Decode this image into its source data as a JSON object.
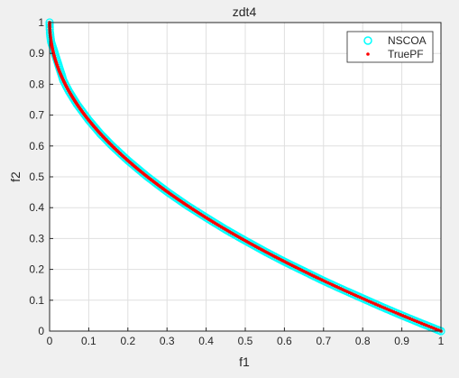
{
  "chart_data": {
    "type": "scatter",
    "title": "zdt4",
    "xlabel": "f1",
    "ylabel": "f2",
    "xlim": [
      0,
      1
    ],
    "ylim": [
      0,
      1
    ],
    "xticks": [
      0,
      0.1,
      0.2,
      0.3,
      0.4,
      0.5,
      0.6,
      0.7,
      0.8,
      0.9,
      1
    ],
    "xtick_labels": [
      "0",
      "0.1",
      "0.2",
      "0.3",
      "0.4",
      "0.5",
      "0.6",
      "0.7",
      "0.8",
      "0.9",
      "1"
    ],
    "yticks": [
      0,
      0.1,
      0.2,
      0.3,
      0.4,
      0.5,
      0.6,
      0.7,
      0.8,
      0.9,
      1
    ],
    "ytick_labels": [
      "0",
      "0.1",
      "0.2",
      "0.3",
      "0.4",
      "0.5",
      "0.6",
      "0.7",
      "0.8",
      "0.9",
      "1"
    ],
    "grid": true,
    "legend_position": "top-right",
    "series": [
      {
        "name": "NSCOA",
        "marker": "circle-open",
        "color": "#00ffff",
        "x": [
          0.0,
          0.0005,
          0.001,
          0.002,
          0.004,
          0.035,
          0.04,
          0.05,
          0.07,
          0.1,
          0.13,
          0.16,
          0.2,
          0.25,
          0.3,
          0.35,
          0.4,
          0.45,
          0.5,
          0.55,
          0.6,
          0.65,
          0.7,
          0.75,
          0.8,
          0.85,
          0.9,
          0.95,
          1.0
        ],
        "y": [
          1.0,
          0.978,
          0.968,
          0.955,
          0.937,
          0.813,
          0.8,
          0.776,
          0.735,
          0.684,
          0.639,
          0.6,
          0.553,
          0.5,
          0.452,
          0.408,
          0.368,
          0.329,
          0.293,
          0.258,
          0.225,
          0.194,
          0.163,
          0.134,
          0.106,
          0.078,
          0.051,
          0.025,
          0.0
        ]
      },
      {
        "name": "TruePF",
        "marker": "dot",
        "color": "#ff0000",
        "function": "1 - sqrt(f1)",
        "x_range": [
          0,
          1
        ]
      }
    ]
  },
  "colors": {
    "figure_background": "#f0f0f0",
    "axes_background": "#ffffff",
    "grid": "#dfdfdf",
    "axis": "#262626"
  }
}
